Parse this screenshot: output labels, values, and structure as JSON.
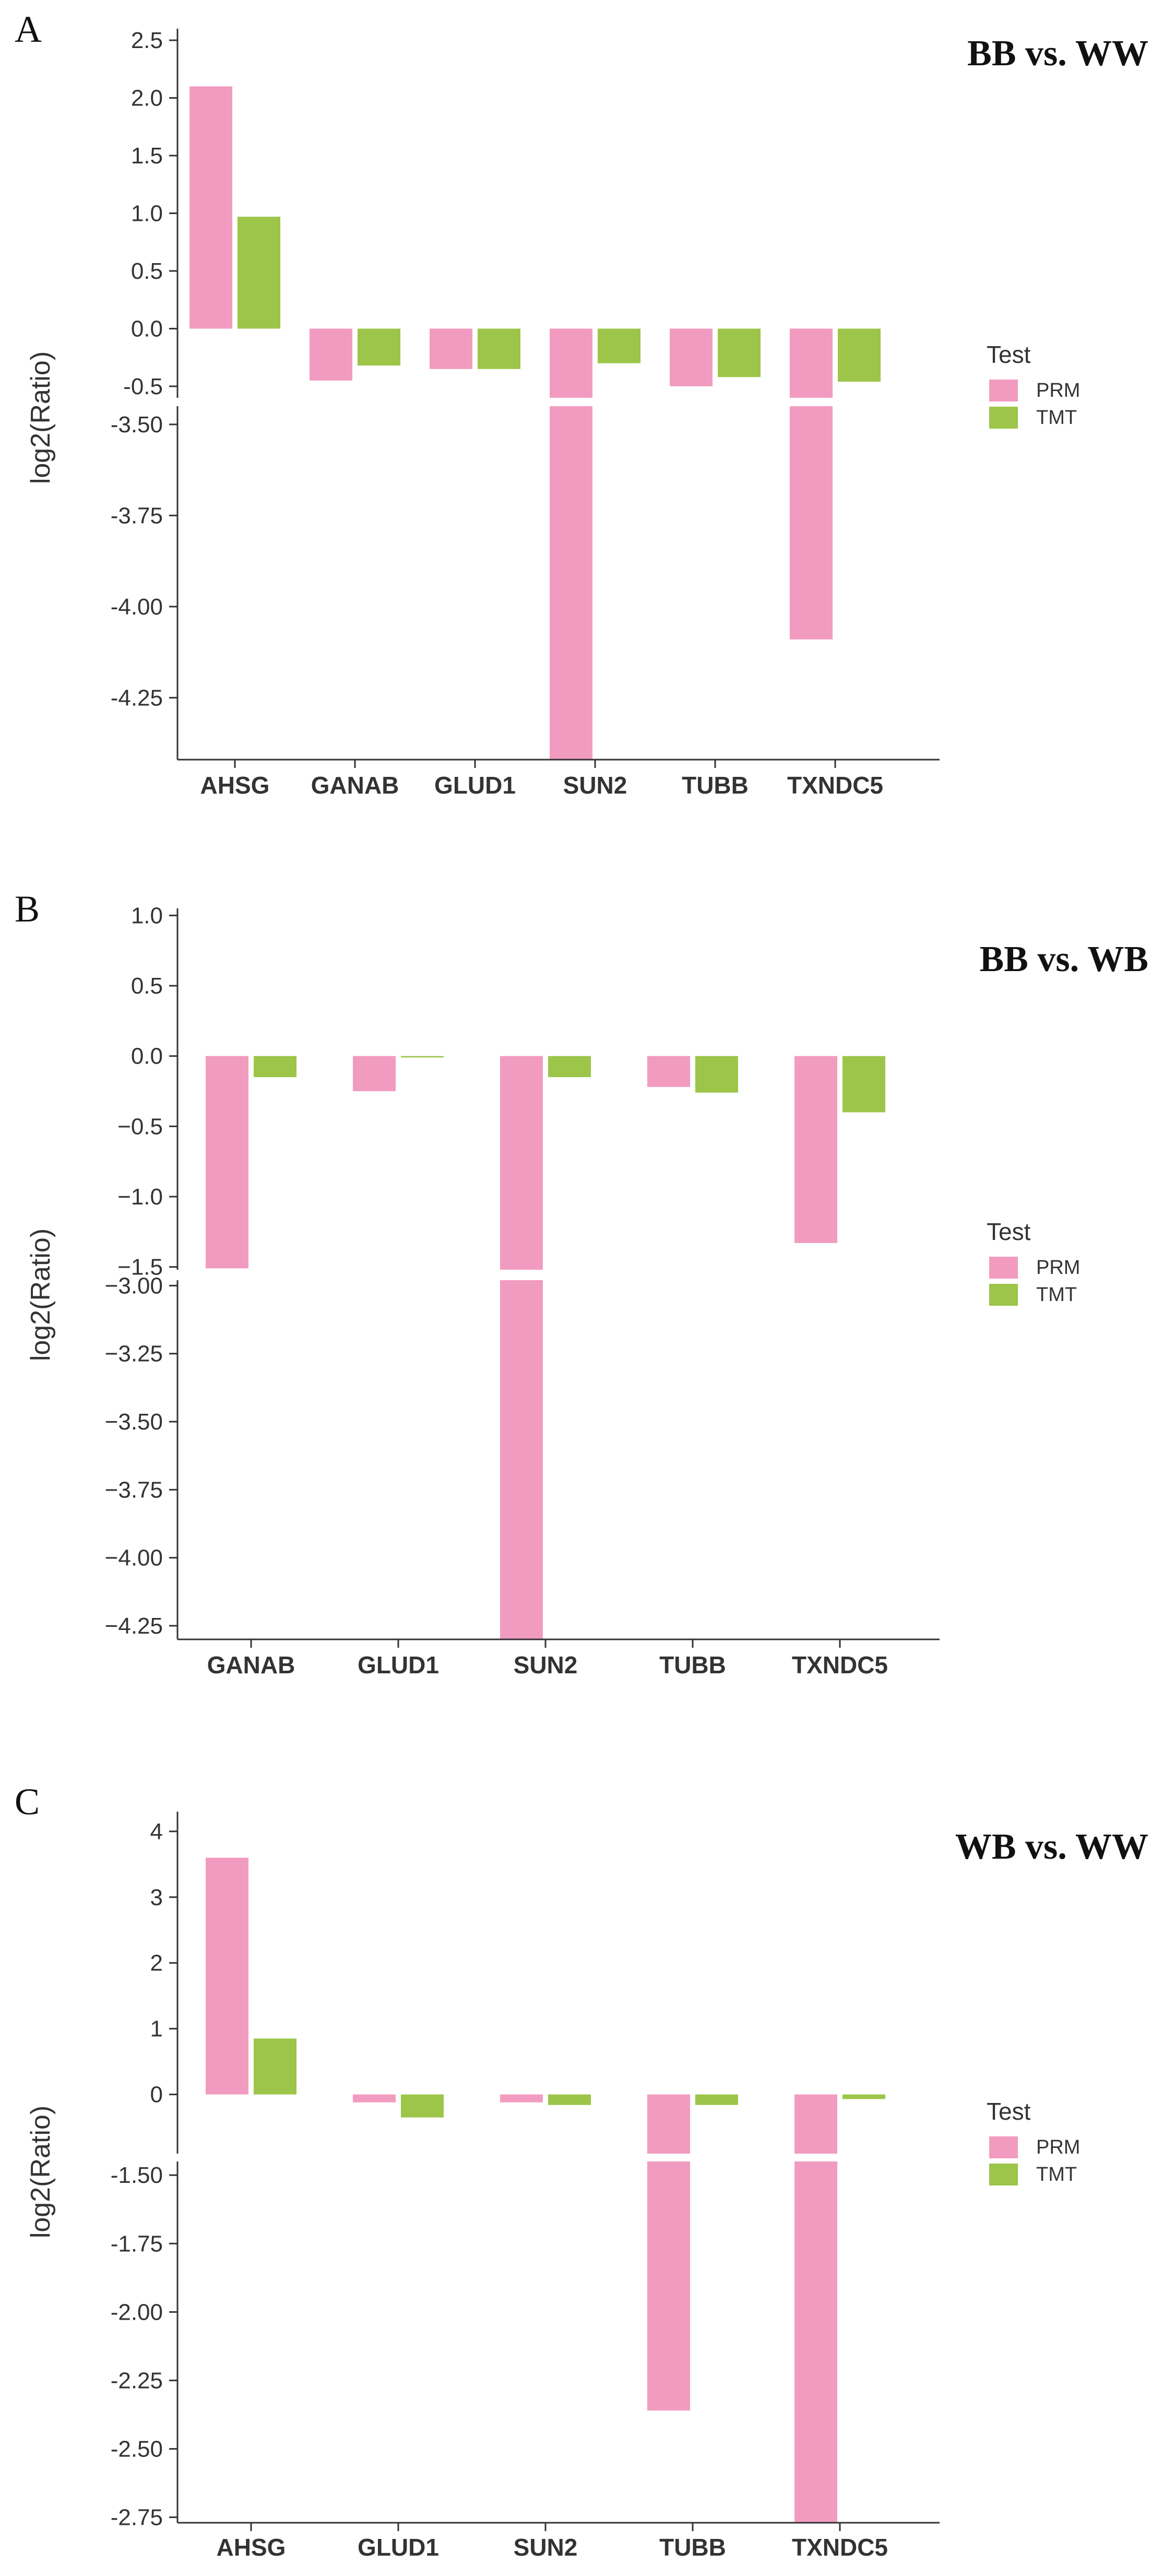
{
  "colors": {
    "PRM": "#f29bc0",
    "TMT": "#9cc54a",
    "axis": "#333333"
  },
  "chart_data": [
    {
      "panel": "A",
      "title": "BB vs. WW",
      "type": "bar",
      "ylabel": "log2(Ratio)",
      "legend_title": "Test",
      "categories": [
        "AHSG",
        "GANAB",
        "GLUD1",
        "SUN2",
        "TUBB",
        "TXNDC5"
      ],
      "series": [
        {
          "name": "PRM",
          "values": [
            2.1,
            -0.45,
            -0.35,
            -4.45,
            -0.5,
            -4.09
          ]
        },
        {
          "name": "TMT",
          "values": [
            0.97,
            -0.32,
            -0.35,
            -0.3,
            -0.42,
            -0.46
          ]
        }
      ],
      "upper_ylim": [
        -0.6,
        2.6
      ],
      "lower_ylim": [
        -4.42,
        -3.45
      ],
      "upper_ticks": [
        {
          "v": 2.5,
          "label": "2.5"
        },
        {
          "v": 2.0,
          "label": "2.0"
        },
        {
          "v": 1.5,
          "label": "1.5"
        },
        {
          "v": 1.0,
          "label": "1.0"
        },
        {
          "v": 0.5,
          "label": "0.5"
        },
        {
          "v": 0.0,
          "label": "0.0"
        },
        {
          "v": -0.5,
          "label": "-0.5"
        }
      ],
      "lower_ticks": [
        {
          "v": -3.5,
          "label": "-3.50"
        },
        {
          "v": -3.75,
          "label": "-3.75"
        },
        {
          "v": -4.0,
          "label": "-4.00"
        },
        {
          "v": -4.25,
          "label": "-4.25"
        }
      ]
    },
    {
      "panel": "B",
      "title": "BB vs. WB",
      "type": "bar",
      "ylabel": "log2(Ratio)",
      "legend_title": "Test",
      "categories": [
        "GANAB",
        "GLUD1",
        "SUN2",
        "TUBB",
        "TXNDC5"
      ],
      "series": [
        {
          "name": "PRM",
          "values": [
            -1.51,
            -0.25,
            -4.32,
            -0.22,
            -1.33
          ]
        },
        {
          "name": "TMT",
          "values": [
            -0.15,
            -0.01,
            -0.15,
            -0.26,
            -0.4
          ]
        }
      ],
      "upper_ylim": [
        -1.52,
        1.05
      ],
      "lower_ylim": [
        -4.3,
        -2.98
      ],
      "upper_ticks": [
        {
          "v": 1.0,
          "label": "1.0"
        },
        {
          "v": 0.5,
          "label": "0.5"
        },
        {
          "v": 0.0,
          "label": "0.0"
        },
        {
          "v": -0.5,
          "label": "−0.5"
        },
        {
          "v": -1.0,
          "label": "−1.0"
        },
        {
          "v": -1.5,
          "label": "−1.5"
        }
      ],
      "lower_ticks": [
        {
          "v": -3.0,
          "label": "−3.00"
        },
        {
          "v": -3.25,
          "label": "−3.25"
        },
        {
          "v": -3.5,
          "label": "−3.50"
        },
        {
          "v": -3.75,
          "label": "−3.75"
        },
        {
          "v": -4.0,
          "label": "−4.00"
        },
        {
          "v": -4.25,
          "label": "−4.25"
        }
      ]
    },
    {
      "panel": "C",
      "title": "WB vs. WW",
      "type": "bar",
      "ylabel": "log2(Ratio)",
      "legend_title": "Test",
      "categories": [
        "AHSG",
        "GLUD1",
        "SUN2",
        "TUBB",
        "TXNDC5"
      ],
      "series": [
        {
          "name": "PRM",
          "values": [
            3.6,
            -0.12,
            -0.12,
            -2.36,
            -2.77
          ]
        },
        {
          "name": "TMT",
          "values": [
            0.85,
            -0.35,
            -0.16,
            -0.16,
            -0.07
          ]
        }
      ],
      "upper_ylim": [
        -0.9,
        4.3
      ],
      "lower_ylim": [
        -2.77,
        -1.45
      ],
      "upper_ticks": [
        {
          "v": 4,
          "label": "4"
        },
        {
          "v": 3,
          "label": "3"
        },
        {
          "v": 2,
          "label": "2"
        },
        {
          "v": 1,
          "label": "1"
        },
        {
          "v": 0,
          "label": "0"
        }
      ],
      "lower_ticks": [
        {
          "v": -1.5,
          "label": "-1.50"
        },
        {
          "v": -1.75,
          "label": "-1.75"
        },
        {
          "v": -2.0,
          "label": "-2.00"
        },
        {
          "v": -2.25,
          "label": "-2.25"
        },
        {
          "v": -2.5,
          "label": "-2.50"
        },
        {
          "v": -2.75,
          "label": "-2.75"
        }
      ]
    }
  ]
}
